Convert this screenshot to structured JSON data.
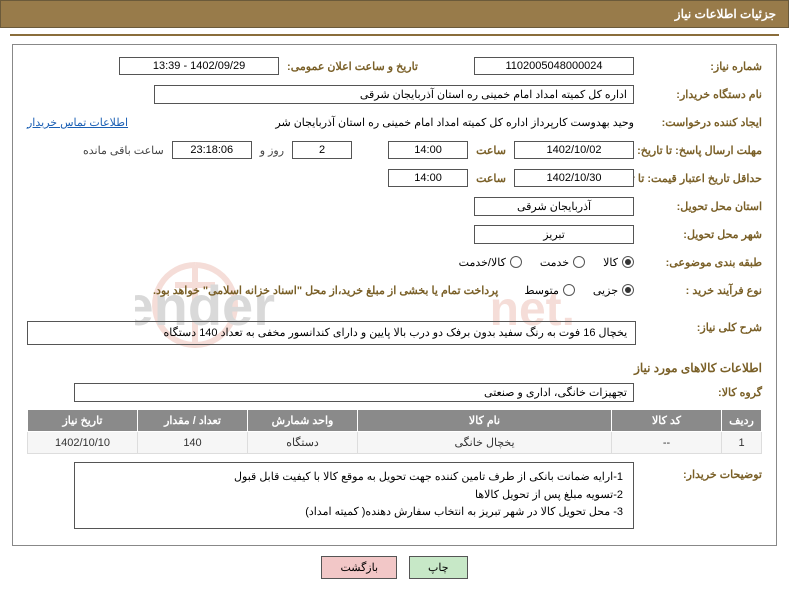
{
  "header": {
    "title": "جزئیات اطلاعات نیاز"
  },
  "fields": {
    "need_no_label": "شماره نیاز:",
    "need_no": "1102005048000024",
    "announce_date_label": "تاریخ و ساعت اعلان عمومی:",
    "announce_date": "1402/09/29 - 13:39",
    "buyer_org_label": "نام دستگاه خریدار:",
    "buyer_org": "اداره کل کمیته امداد امام خمینی  ره  استان آذربایجان شرقی",
    "requester_label": "ایجاد کننده درخواست:",
    "requester": "وحید بهدوست کارپرداز اداره کل کمیته امداد امام خمینی  ره  استان آذربایجان شر",
    "buyer_contact_link": "اطلاعات تماس خریدار",
    "reply_deadline_label": "مهلت ارسال پاسخ: تا تاریخ:",
    "reply_date": "1402/10/02",
    "time_label": "ساعت",
    "reply_time": "14:00",
    "remain_days": "2",
    "days_and": "روز و",
    "remain_hms": "23:18:06",
    "remain_suffix": "ساعت باقی مانده",
    "min_validity_label": "حداقل تاریخ اعتبار قیمت: تا تاریخ:",
    "min_validity_date": "1402/10/30",
    "min_validity_time": "14:00",
    "province_label": "استان محل تحویل:",
    "province": "آذربایجان شرقی",
    "city_label": "شهر محل تحویل:",
    "city": "تبریز",
    "category_label": "طبقه بندی موضوعی:",
    "cat_goods": "کالا",
    "cat_service": "خدمت",
    "cat_both": "کالا/خدمت",
    "process_type_label": "نوع فرآیند خرید :",
    "proc_small": "جزیی",
    "proc_medium": "متوسط",
    "process_note": "پرداخت تمام یا بخشی از مبلغ خرید،از محل \"اسناد خزانه اسلامی\" خواهد بود.",
    "desc_label": "شرح کلی نیاز:",
    "desc": "یخچال 16 فوت به رنگ سفید بدون برفک دو درب بالا پایین و دارای کندانسور مخفی  به تعداد 140 دستگاه",
    "items_title": "اطلاعات کالاهای مورد نیاز",
    "group_label": "گروه کالا:",
    "group": "تجهیزات خانگی، اداری و صنعتی",
    "buyer_notes_label": "توضیحات خریدار:",
    "notes_l1": "1-ارایه ضمانت بانکی از طرف تامین کننده جهت تحویل به موقع کالا با کیفیت قابل قبول",
    "notes_l2": "2-تسویه مبلغ پس از تحویل کالاها",
    "notes_l3": "3- محل تحویل کالا در شهر تبریز به انتخاب سفارش دهنده( کمیته امداد)"
  },
  "table": {
    "headers": [
      "ردیف",
      "کد کالا",
      "نام کالا",
      "واحد شمارش",
      "تعداد / مقدار",
      "تاریخ نیاز"
    ],
    "col_widths": [
      "40px",
      "110px",
      "auto",
      "110px",
      "110px",
      "110px"
    ],
    "rows": [
      [
        "1",
        "--",
        "یخچال خانگی",
        "دستگاه",
        "140",
        "1402/10/10"
      ]
    ]
  },
  "buttons": {
    "print": "چاپ",
    "back": "بازگشت"
  },
  "colors": {
    "header_bg": "#987b4a",
    "label": "#7a6028",
    "th_bg": "#8a8a8a",
    "link": "#1a5fb4"
  }
}
